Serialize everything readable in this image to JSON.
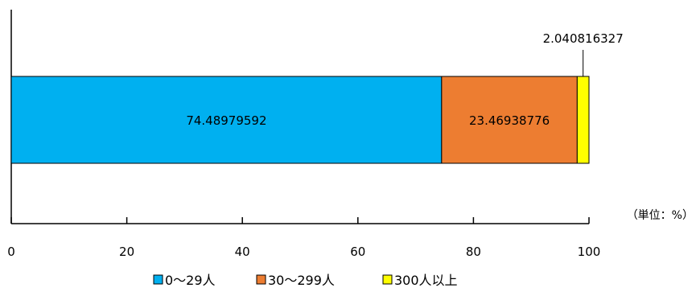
{
  "chart_data": {
    "type": "bar",
    "orientation": "horizontal",
    "stacked": true,
    "categories": [
      ""
    ],
    "series": [
      {
        "name": "0〜29人",
        "values": [
          74.48979592
        ],
        "label": "74.48979592",
        "color": "#00b0f0"
      },
      {
        "name": "30〜299人",
        "values": [
          23.46938776
        ],
        "label": "23.46938776",
        "color": "#ed7d31"
      },
      {
        "name": "300人以上",
        "values": [
          2.040816327
        ],
        "label": "2.040816327",
        "color": "#ffff00"
      }
    ],
    "xlim": [
      0,
      100
    ],
    "xticks": [
      "0",
      "20",
      "40",
      "60",
      "80",
      "100"
    ],
    "unit_label": "（単位：%）",
    "legend_position": "bottom",
    "grid": false
  }
}
